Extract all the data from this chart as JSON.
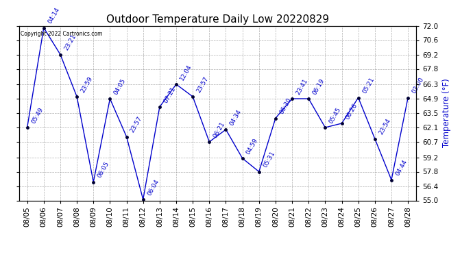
{
  "title": "Outdoor Temperature Daily Low 20220829",
  "ylabel": "Temperature (°F)",
  "copyright_text": "Copyright 2022 Cartronics.com",
  "background_color": "#ffffff",
  "line_color": "#0000cc",
  "grid_color": "#999999",
  "dates": [
    "08/05",
    "08/06",
    "08/07",
    "08/08",
    "08/09",
    "08/10",
    "08/11",
    "08/12",
    "08/13",
    "08/14",
    "08/15",
    "08/16",
    "08/17",
    "08/18",
    "08/19",
    "08/20",
    "08/21",
    "08/22",
    "08/23",
    "08/24",
    "08/25",
    "08/26",
    "08/27",
    "08/28"
  ],
  "values": [
    62.1,
    71.8,
    69.2,
    65.1,
    56.8,
    64.9,
    61.2,
    55.1,
    64.1,
    66.3,
    65.1,
    60.7,
    61.9,
    59.1,
    57.8,
    63.0,
    64.9,
    64.9,
    62.1,
    62.5,
    65.0,
    61.0,
    57.0,
    65.0
  ],
  "labels": [
    "05:49",
    "04:14",
    "23:21",
    "23:59",
    "06:05",
    "04:05",
    "23:57",
    "06:04",
    "07:21",
    "12:04",
    "23:57",
    "06:21",
    "04:34",
    "04:59",
    "05:31",
    "06:30",
    "23:41",
    "06:19",
    "05:45",
    "06:26",
    "05:21",
    "23:54",
    "04:44",
    "03:00"
  ],
  "ylim": [
    55.0,
    72.0
  ],
  "yticks": [
    55.0,
    56.4,
    57.8,
    59.2,
    60.7,
    62.1,
    63.5,
    64.9,
    66.3,
    67.8,
    69.2,
    70.6,
    72.0
  ],
  "title_fontsize": 11,
  "tick_fontsize": 7.5,
  "ylabel_fontsize": 8.5,
  "ylabel_color": "#0000cc",
  "annotation_fontsize": 6.5,
  "annotation_color": "#0000cc"
}
